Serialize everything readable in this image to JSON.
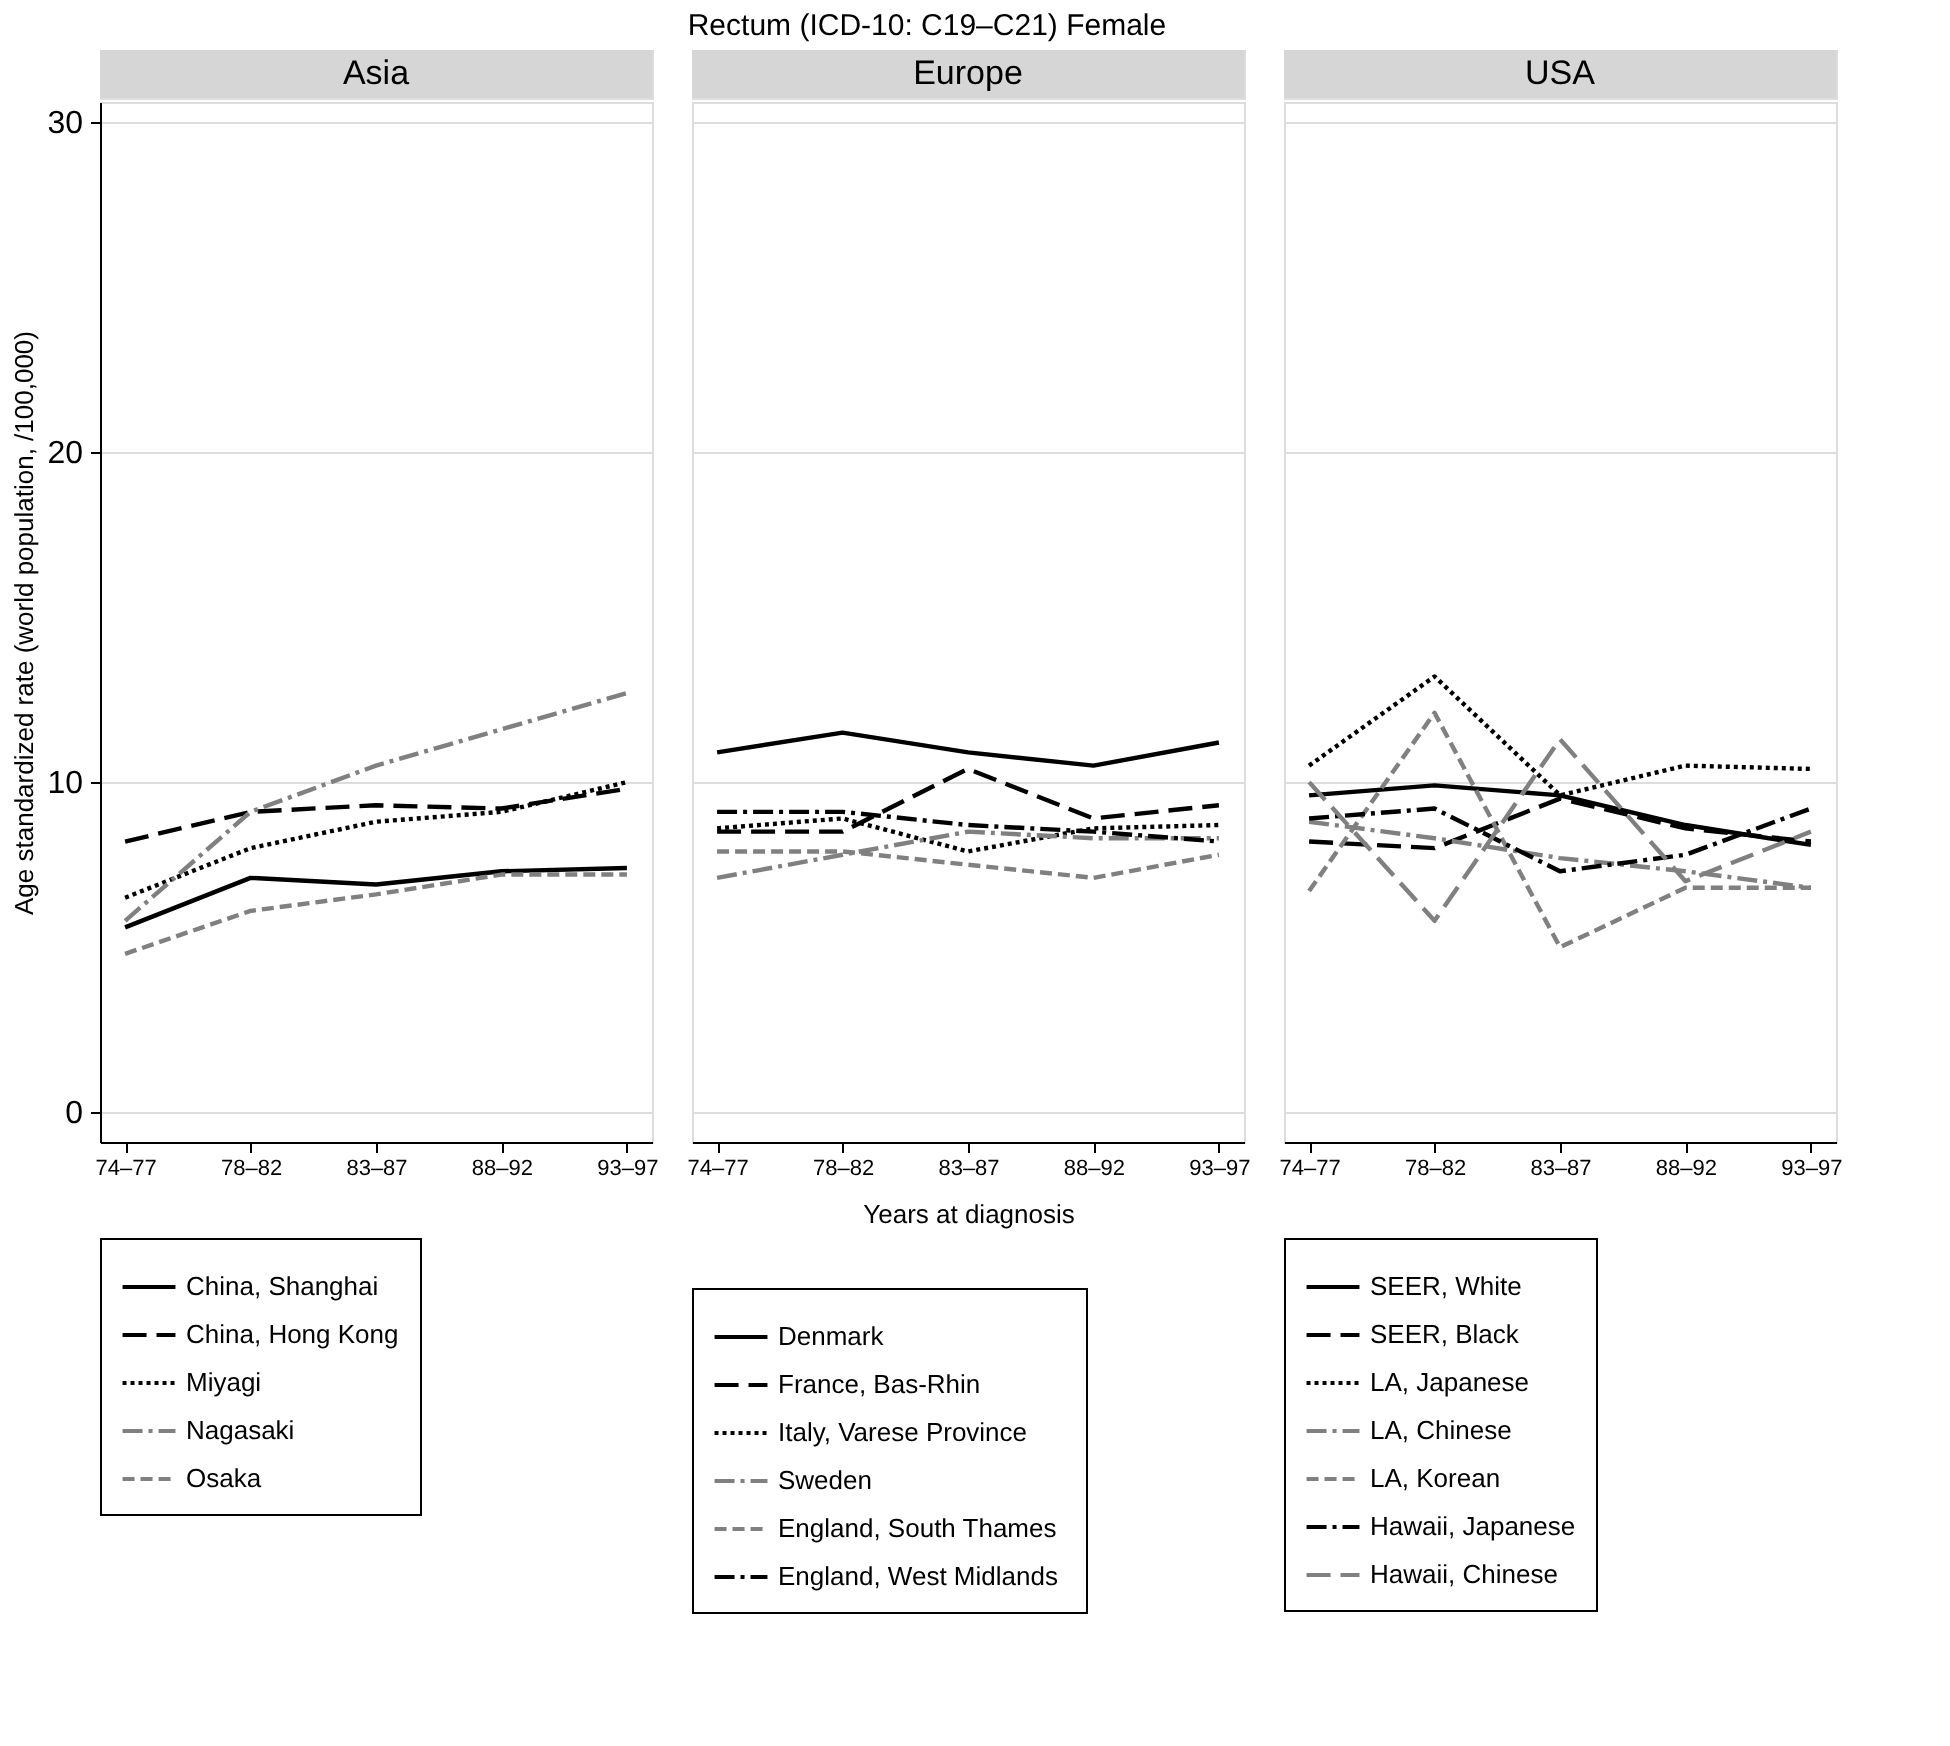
{
  "chart_data": [
    {
      "type": "line",
      "title": "Asia",
      "annotations": [
        "Rectum (ICD-10: C19–C21)  Female"
      ],
      "ylabel": "Age standardized rate (world population, /100,000)",
      "categories": [
        "74–77",
        "78–82",
        "83–87",
        "88–92",
        "93–97"
      ],
      "ylim": [
        -0.9,
        30.6
      ],
      "yticks": [
        0,
        10,
        20,
        30
      ],
      "grid": "y",
      "legend": "bottom",
      "series": [
        {
          "name": "China, Shanghai",
          "color": "#000000",
          "line_style": "solid",
          "values": [
            5.6,
            7.1,
            6.9,
            7.3,
            7.4
          ]
        },
        {
          "name": "China, Hong Kong",
          "color": "#000000",
          "line_style": "longdash",
          "values": [
            8.2,
            9.1,
            9.3,
            9.2,
            9.8
          ]
        },
        {
          "name": "Miyagi",
          "color": "#000000",
          "line_style": "dotted",
          "values": [
            6.5,
            8.0,
            8.8,
            9.1,
            10.0
          ]
        },
        {
          "name": "Nagasaki",
          "color": "#808080",
          "line_style": "dashdot",
          "values": [
            5.8,
            9.1,
            10.5,
            11.6,
            12.7
          ]
        },
        {
          "name": "Osaka",
          "color": "#808080",
          "line_style": "dashed",
          "values": [
            4.8,
            6.1,
            6.6,
            7.2,
            7.2
          ]
        }
      ]
    },
    {
      "type": "line",
      "title": "Europe",
      "xlabel": "Years at diagnosis",
      "categories": [
        "74–77",
        "78–82",
        "83–87",
        "88–92",
        "93–97"
      ],
      "ylim": [
        -0.9,
        30.6
      ],
      "yticks": [
        0,
        10,
        20,
        30
      ],
      "tick_labels": "x",
      "grid": "y",
      "legend": "bottom",
      "series": [
        {
          "name": "Denmark",
          "color": "#000000",
          "line_style": "solid",
          "values": [
            10.9,
            11.5,
            10.9,
            10.5,
            11.2
          ]
        },
        {
          "name": "France, Bas-Rhin",
          "color": "#000000",
          "line_style": "longdash",
          "values": [
            8.5,
            8.5,
            10.4,
            8.9,
            9.3
          ]
        },
        {
          "name": "Italy, Varese Province",
          "color": "#000000",
          "line_style": "dotted",
          "values": [
            8.6,
            8.9,
            7.9,
            8.6,
            8.7
          ]
        },
        {
          "name": "Sweden",
          "color": "#808080",
          "line_style": "dashdot",
          "values": [
            7.1,
            7.8,
            8.5,
            8.3,
            8.3
          ]
        },
        {
          "name": "England, South Thames",
          "color": "#808080",
          "line_style": "dashed",
          "values": [
            7.9,
            7.9,
            7.5,
            7.1,
            7.8
          ]
        },
        {
          "name": "England,  West Midlands",
          "color": "#000000",
          "line_style": "dashdot",
          "values": [
            9.1,
            9.1,
            8.7,
            8.5,
            8.2
          ]
        }
      ]
    },
    {
      "type": "line",
      "title": "USA",
      "categories": [
        "74–77",
        "78–82",
        "83–87",
        "88–92",
        "93–97"
      ],
      "ylim": [
        -0.9,
        30.6
      ],
      "yticks": [
        0,
        10,
        20,
        30
      ],
      "tick_labels": "x",
      "grid": "y",
      "legend": "bottom",
      "series": [
        {
          "name": "SEER, White",
          "color": "#000000",
          "line_style": "solid",
          "values": [
            9.6,
            9.9,
            9.6,
            8.7,
            8.1
          ]
        },
        {
          "name": "SEER, Black",
          "color": "#000000",
          "line_style": "longdash",
          "values": [
            8.2,
            8.0,
            9.5,
            8.6,
            8.2
          ]
        },
        {
          "name": "LA, Japanese",
          "color": "#000000",
          "line_style": "dotted",
          "values": [
            10.5,
            13.2,
            9.6,
            10.5,
            10.4
          ]
        },
        {
          "name": "LA, Chinese",
          "color": "#808080",
          "line_style": "dashdot",
          "values": [
            8.8,
            8.3,
            7.7,
            7.3,
            6.8
          ]
        },
        {
          "name": "LA, Korean",
          "color": "#808080",
          "line_style": "dashed",
          "values": [
            6.7,
            12.1,
            5.0,
            6.8,
            6.8
          ]
        },
        {
          "name": "Hawaii, Japanese",
          "color": "#000000",
          "line_style": "dashdot",
          "values": [
            8.9,
            9.2,
            7.3,
            7.8,
            9.2
          ]
        },
        {
          "name": "Hawaii, Chinese",
          "color": "#808080",
          "line_style": "longdash",
          "values": [
            10.0,
            5.8,
            11.3,
            7.0,
            8.5
          ]
        }
      ]
    }
  ]
}
